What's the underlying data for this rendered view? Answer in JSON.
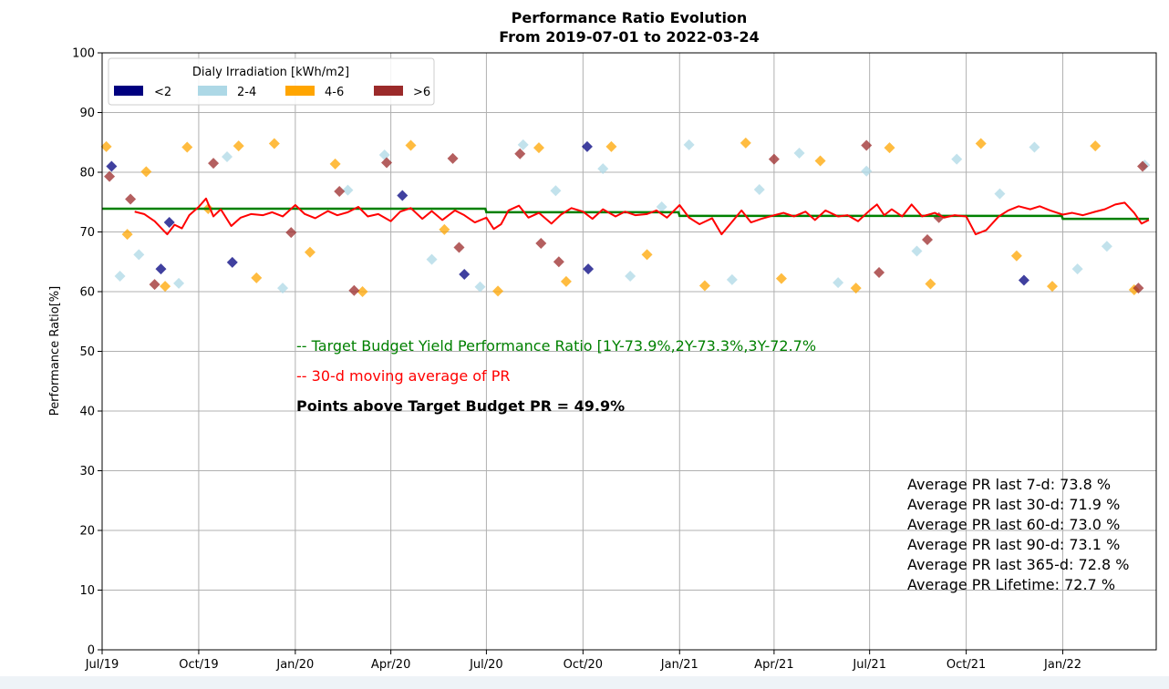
{
  "chart_data": {
    "type": "scatter",
    "title": "Performance Ratio Evolution",
    "subtitle": "From 2019-07-01 to 2022-03-24",
    "xlabel": "",
    "ylabel": "Performance Ratio[%]",
    "x_range": [
      "2019-07-01",
      "2022-03-31"
    ],
    "ylim": [
      0,
      100
    ],
    "yticks": [
      0,
      10,
      20,
      30,
      40,
      50,
      60,
      70,
      80,
      90,
      100
    ],
    "xticks": [
      {
        "date": "2019-07-01",
        "label": "Jul/19"
      },
      {
        "date": "2019-10-01",
        "label": "Oct/19"
      },
      {
        "date": "2020-01-01",
        "label": "Jan/20"
      },
      {
        "date": "2020-04-01",
        "label": "Apr/20"
      },
      {
        "date": "2020-07-01",
        "label": "Jul/20"
      },
      {
        "date": "2020-10-01",
        "label": "Oct/20"
      },
      {
        "date": "2021-01-01",
        "label": "Jan/21"
      },
      {
        "date": "2021-04-01",
        "label": "Apr/21"
      },
      {
        "date": "2021-07-01",
        "label": "Jul/21"
      },
      {
        "date": "2021-10-01",
        "label": "Oct/21"
      },
      {
        "date": "2022-01-01",
        "label": "Jan/22"
      }
    ],
    "grid": true,
    "legend": {
      "title": "Dialy Irradiation [kWh/m2]",
      "placement": "top-left",
      "entries": [
        {
          "label": "<2",
          "color": "#00007f"
        },
        {
          "label": "2-4",
          "color": "#add8e6"
        },
        {
          "label": "4-6",
          "color": "#ffa500"
        },
        {
          "label": ">6",
          "color": "#9b2a2a"
        }
      ]
    },
    "target_budget": [
      {
        "from": "2019-07-01",
        "to": "2020-06-30",
        "value": 73.9
      },
      {
        "from": "2020-07-01",
        "to": "2020-12-31",
        "value": 73.3
      },
      {
        "from": "2021-01-01",
        "to": "2021-12-31",
        "value": 72.7
      },
      {
        "from": "2022-01-01",
        "to": "2022-03-24",
        "value": 72.2
      }
    ],
    "moving_average": {
      "points": [
        [
          "2019-08-01",
          73.4
        ],
        [
          "2019-08-10",
          73.0
        ],
        [
          "2019-08-20",
          71.8
        ],
        [
          "2019-09-01",
          69.6
        ],
        [
          "2019-09-08",
          71.2
        ],
        [
          "2019-09-15",
          70.6
        ],
        [
          "2019-09-22",
          72.8
        ],
        [
          "2019-10-01",
          74.2
        ],
        [
          "2019-10-08",
          75.6
        ],
        [
          "2019-10-15",
          72.6
        ],
        [
          "2019-10-22",
          73.8
        ],
        [
          "2019-11-01",
          71.0
        ],
        [
          "2019-11-10",
          72.4
        ],
        [
          "2019-11-20",
          73.0
        ],
        [
          "2019-12-01",
          72.8
        ],
        [
          "2019-12-10",
          73.3
        ],
        [
          "2019-12-20",
          72.6
        ],
        [
          "2020-01-01",
          74.5
        ],
        [
          "2020-01-10",
          73.0
        ],
        [
          "2020-01-20",
          72.3
        ],
        [
          "2020-02-01",
          73.5
        ],
        [
          "2020-02-10",
          72.8
        ],
        [
          "2020-02-20",
          73.3
        ],
        [
          "2020-03-01",
          74.2
        ],
        [
          "2020-03-10",
          72.6
        ],
        [
          "2020-03-20",
          73.0
        ],
        [
          "2020-04-01",
          71.8
        ],
        [
          "2020-04-10",
          73.4
        ],
        [
          "2020-04-20",
          74.0
        ],
        [
          "2020-05-01",
          72.2
        ],
        [
          "2020-05-10",
          73.5
        ],
        [
          "2020-05-20",
          72.0
        ],
        [
          "2020-06-01",
          73.6
        ],
        [
          "2020-06-10",
          72.8
        ],
        [
          "2020-06-20",
          71.6
        ],
        [
          "2020-07-01",
          72.4
        ],
        [
          "2020-07-08",
          70.5
        ],
        [
          "2020-07-15",
          71.3
        ],
        [
          "2020-07-22",
          73.6
        ],
        [
          "2020-08-01",
          74.4
        ],
        [
          "2020-08-10",
          72.4
        ],
        [
          "2020-08-20",
          73.2
        ],
        [
          "2020-09-01",
          71.4
        ],
        [
          "2020-09-10",
          72.9
        ],
        [
          "2020-09-20",
          74.0
        ],
        [
          "2020-10-01",
          73.4
        ],
        [
          "2020-10-10",
          72.2
        ],
        [
          "2020-10-20",
          73.8
        ],
        [
          "2020-11-01",
          72.6
        ],
        [
          "2020-11-10",
          73.4
        ],
        [
          "2020-11-20",
          72.8
        ],
        [
          "2020-12-01",
          73.0
        ],
        [
          "2020-12-10",
          73.6
        ],
        [
          "2020-12-20",
          72.4
        ],
        [
          "2021-01-01",
          74.5
        ],
        [
          "2021-01-10",
          72.4
        ],
        [
          "2021-01-20",
          71.3
        ],
        [
          "2021-02-01",
          72.3
        ],
        [
          "2021-02-10",
          69.6
        ],
        [
          "2021-02-20",
          71.7
        ],
        [
          "2021-03-01",
          73.6
        ],
        [
          "2021-03-10",
          71.6
        ],
        [
          "2021-03-20",
          72.2
        ],
        [
          "2021-04-01",
          72.8
        ],
        [
          "2021-04-10",
          73.2
        ],
        [
          "2021-04-20",
          72.6
        ],
        [
          "2021-05-01",
          73.4
        ],
        [
          "2021-05-10",
          72.0
        ],
        [
          "2021-05-20",
          73.6
        ],
        [
          "2021-06-01",
          72.6
        ],
        [
          "2021-06-10",
          72.8
        ],
        [
          "2021-06-20",
          71.8
        ],
        [
          "2021-07-01",
          73.6
        ],
        [
          "2021-07-08",
          74.6
        ],
        [
          "2021-07-15",
          72.8
        ],
        [
          "2021-07-22",
          73.8
        ],
        [
          "2021-08-01",
          72.6
        ],
        [
          "2021-08-10",
          74.6
        ],
        [
          "2021-08-20",
          72.6
        ],
        [
          "2021-09-01",
          73.2
        ],
        [
          "2021-09-10",
          72.4
        ],
        [
          "2021-09-20",
          72.8
        ],
        [
          "2021-10-01",
          72.6
        ],
        [
          "2021-10-10",
          69.6
        ],
        [
          "2021-10-20",
          70.3
        ],
        [
          "2021-11-01",
          72.6
        ],
        [
          "2021-11-10",
          73.6
        ],
        [
          "2021-11-20",
          74.3
        ],
        [
          "2021-12-01",
          73.8
        ],
        [
          "2021-12-10",
          74.3
        ],
        [
          "2021-12-20",
          73.6
        ],
        [
          "2022-01-01",
          72.9
        ],
        [
          "2022-01-10",
          73.2
        ],
        [
          "2022-01-20",
          72.8
        ],
        [
          "2022-02-01",
          73.4
        ],
        [
          "2022-02-10",
          73.8
        ],
        [
          "2022-02-20",
          74.6
        ],
        [
          "2022-03-01",
          74.9
        ],
        [
          "2022-03-10",
          73.2
        ],
        [
          "2022-03-17",
          71.4
        ],
        [
          "2022-03-24",
          72.0
        ]
      ]
    },
    "points": [
      {
        "date": "2019-07-10",
        "pr": 81.0,
        "class": "<2"
      },
      {
        "date": "2019-11-02",
        "pr": 64.9,
        "class": "<2"
      },
      {
        "date": "2019-09-03",
        "pr": 71.6,
        "class": "<2"
      },
      {
        "date": "2019-08-26",
        "pr": 63.8,
        "class": "<2"
      },
      {
        "date": "2020-04-12",
        "pr": 76.1,
        "class": "<2"
      },
      {
        "date": "2020-06-10",
        "pr": 62.9,
        "class": "<2"
      },
      {
        "date": "2020-10-06",
        "pr": 63.8,
        "class": "<2"
      },
      {
        "date": "2020-10-05",
        "pr": 84.3,
        "class": "<2"
      },
      {
        "date": "2021-11-25",
        "pr": 61.9,
        "class": "<2"
      },
      {
        "date": "2019-07-18",
        "pr": 62.6,
        "class": "2-4"
      },
      {
        "date": "2019-08-05",
        "pr": 66.2,
        "class": "2-4"
      },
      {
        "date": "2019-09-12",
        "pr": 61.4,
        "class": "2-4"
      },
      {
        "date": "2019-10-28",
        "pr": 82.6,
        "class": "2-4"
      },
      {
        "date": "2019-12-20",
        "pr": 60.6,
        "class": "2-4"
      },
      {
        "date": "2020-02-20",
        "pr": 77.0,
        "class": "2-4"
      },
      {
        "date": "2020-03-26",
        "pr": 82.9,
        "class": "2-4"
      },
      {
        "date": "2020-05-10",
        "pr": 65.4,
        "class": "2-4"
      },
      {
        "date": "2020-06-25",
        "pr": 60.8,
        "class": "2-4"
      },
      {
        "date": "2020-08-05",
        "pr": 84.6,
        "class": "2-4"
      },
      {
        "date": "2020-09-05",
        "pr": 76.9,
        "class": "2-4"
      },
      {
        "date": "2020-10-20",
        "pr": 80.6,
        "class": "2-4"
      },
      {
        "date": "2020-11-15",
        "pr": 62.6,
        "class": "2-4"
      },
      {
        "date": "2020-12-15",
        "pr": 74.2,
        "class": "2-4"
      },
      {
        "date": "2021-01-10",
        "pr": 84.6,
        "class": "2-4"
      },
      {
        "date": "2021-02-20",
        "pr": 62.0,
        "class": "2-4"
      },
      {
        "date": "2021-03-18",
        "pr": 77.1,
        "class": "2-4"
      },
      {
        "date": "2021-04-25",
        "pr": 83.2,
        "class": "2-4"
      },
      {
        "date": "2021-06-01",
        "pr": 61.5,
        "class": "2-4"
      },
      {
        "date": "2021-06-28",
        "pr": 80.2,
        "class": "2-4"
      },
      {
        "date": "2021-08-15",
        "pr": 66.8,
        "class": "2-4"
      },
      {
        "date": "2021-09-22",
        "pr": 82.2,
        "class": "2-4"
      },
      {
        "date": "2021-11-02",
        "pr": 76.4,
        "class": "2-4"
      },
      {
        "date": "2021-12-05",
        "pr": 84.2,
        "class": "2-4"
      },
      {
        "date": "2022-01-15",
        "pr": 63.8,
        "class": "2-4"
      },
      {
        "date": "2022-02-12",
        "pr": 67.6,
        "class": "2-4"
      },
      {
        "date": "2022-03-20",
        "pr": 81.2,
        "class": "2-4"
      },
      {
        "date": "2019-07-05",
        "pr": 84.3,
        "class": "4-6"
      },
      {
        "date": "2019-07-25",
        "pr": 69.6,
        "class": "4-6"
      },
      {
        "date": "2019-08-12",
        "pr": 80.1,
        "class": "4-6"
      },
      {
        "date": "2019-08-30",
        "pr": 60.9,
        "class": "4-6"
      },
      {
        "date": "2019-09-20",
        "pr": 84.2,
        "class": "4-6"
      },
      {
        "date": "2019-10-10",
        "pr": 73.9,
        "class": "4-6"
      },
      {
        "date": "2019-11-08",
        "pr": 84.4,
        "class": "4-6"
      },
      {
        "date": "2019-11-25",
        "pr": 62.3,
        "class": "4-6"
      },
      {
        "date": "2019-12-12",
        "pr": 84.8,
        "class": "4-6"
      },
      {
        "date": "2020-01-15",
        "pr": 66.6,
        "class": "4-6"
      },
      {
        "date": "2020-02-08",
        "pr": 81.4,
        "class": "4-6"
      },
      {
        "date": "2020-03-05",
        "pr": 60.0,
        "class": "4-6"
      },
      {
        "date": "2020-04-20",
        "pr": 84.5,
        "class": "4-6"
      },
      {
        "date": "2020-05-22",
        "pr": 70.4,
        "class": "4-6"
      },
      {
        "date": "2020-07-12",
        "pr": 60.1,
        "class": "4-6"
      },
      {
        "date": "2020-08-20",
        "pr": 84.1,
        "class": "4-6"
      },
      {
        "date": "2020-09-15",
        "pr": 61.7,
        "class": "4-6"
      },
      {
        "date": "2020-10-28",
        "pr": 84.3,
        "class": "4-6"
      },
      {
        "date": "2020-12-01",
        "pr": 66.2,
        "class": "4-6"
      },
      {
        "date": "2021-01-25",
        "pr": 61.0,
        "class": "4-6"
      },
      {
        "date": "2021-03-05",
        "pr": 84.9,
        "class": "4-6"
      },
      {
        "date": "2021-04-08",
        "pr": 62.2,
        "class": "4-6"
      },
      {
        "date": "2021-05-15",
        "pr": 81.9,
        "class": "4-6"
      },
      {
        "date": "2021-06-18",
        "pr": 60.6,
        "class": "4-6"
      },
      {
        "date": "2021-07-20",
        "pr": 84.1,
        "class": "4-6"
      },
      {
        "date": "2021-08-28",
        "pr": 61.3,
        "class": "4-6"
      },
      {
        "date": "2021-10-15",
        "pr": 84.8,
        "class": "4-6"
      },
      {
        "date": "2021-11-18",
        "pr": 66.0,
        "class": "4-6"
      },
      {
        "date": "2021-12-22",
        "pr": 60.9,
        "class": "4-6"
      },
      {
        "date": "2022-02-01",
        "pr": 84.4,
        "class": "4-6"
      },
      {
        "date": "2022-03-10",
        "pr": 60.3,
        "class": "4-6"
      },
      {
        "date": "2019-07-08",
        "pr": 79.3,
        "class": ">6"
      },
      {
        "date": "2019-07-28",
        "pr": 75.5,
        "class": ">6"
      },
      {
        "date": "2019-08-20",
        "pr": 61.2,
        "class": ">6"
      },
      {
        "date": "2019-10-15",
        "pr": 81.5,
        "class": ">6"
      },
      {
        "date": "2019-12-28",
        "pr": 69.9,
        "class": ">6"
      },
      {
        "date": "2020-02-12",
        "pr": 76.8,
        "class": ">6"
      },
      {
        "date": "2020-02-26",
        "pr": 60.2,
        "class": ">6"
      },
      {
        "date": "2020-03-28",
        "pr": 81.6,
        "class": ">6"
      },
      {
        "date": "2020-05-30",
        "pr": 82.3,
        "class": ">6"
      },
      {
        "date": "2020-06-05",
        "pr": 67.4,
        "class": ">6"
      },
      {
        "date": "2020-08-02",
        "pr": 83.1,
        "class": ">6"
      },
      {
        "date": "2020-08-22",
        "pr": 68.1,
        "class": ">6"
      },
      {
        "date": "2020-09-08",
        "pr": 65.0,
        "class": ">6"
      },
      {
        "date": "2021-04-01",
        "pr": 82.2,
        "class": ">6"
      },
      {
        "date": "2021-06-28",
        "pr": 84.5,
        "class": ">6"
      },
      {
        "date": "2021-07-10",
        "pr": 63.2,
        "class": ">6"
      },
      {
        "date": "2021-08-25",
        "pr": 68.7,
        "class": ">6"
      },
      {
        "date": "2021-09-05",
        "pr": 72.4,
        "class": ">6"
      },
      {
        "date": "2022-03-14",
        "pr": 60.6,
        "class": ">6"
      },
      {
        "date": "2022-03-18",
        "pr": 81.0,
        "class": ">6"
      }
    ],
    "annotations": {
      "target_line": "-- Target Budget Yield Performance Ratio [1Y-73.9%,2Y-73.3%,3Y-72.7%",
      "moving_average_line": "-- 30-d moving average of PR",
      "points_above": "Points above Target Budget PR = 49.9%"
    },
    "averages": [
      "Average PR last 7-d: 73.8 %",
      "Average PR last 30-d: 71.9 %",
      "Average PR last 60-d: 73.0 %",
      "Average PR last 90-d: 73.1 %",
      "Average PR last 365-d: 72.8 %",
      "Average PR Lifetime: 72.7 %"
    ],
    "colors": {
      "target": "#008000",
      "moving_average": "#ff0000",
      "grid": "#b0b0b0",
      "axis": "#000000"
    }
  }
}
